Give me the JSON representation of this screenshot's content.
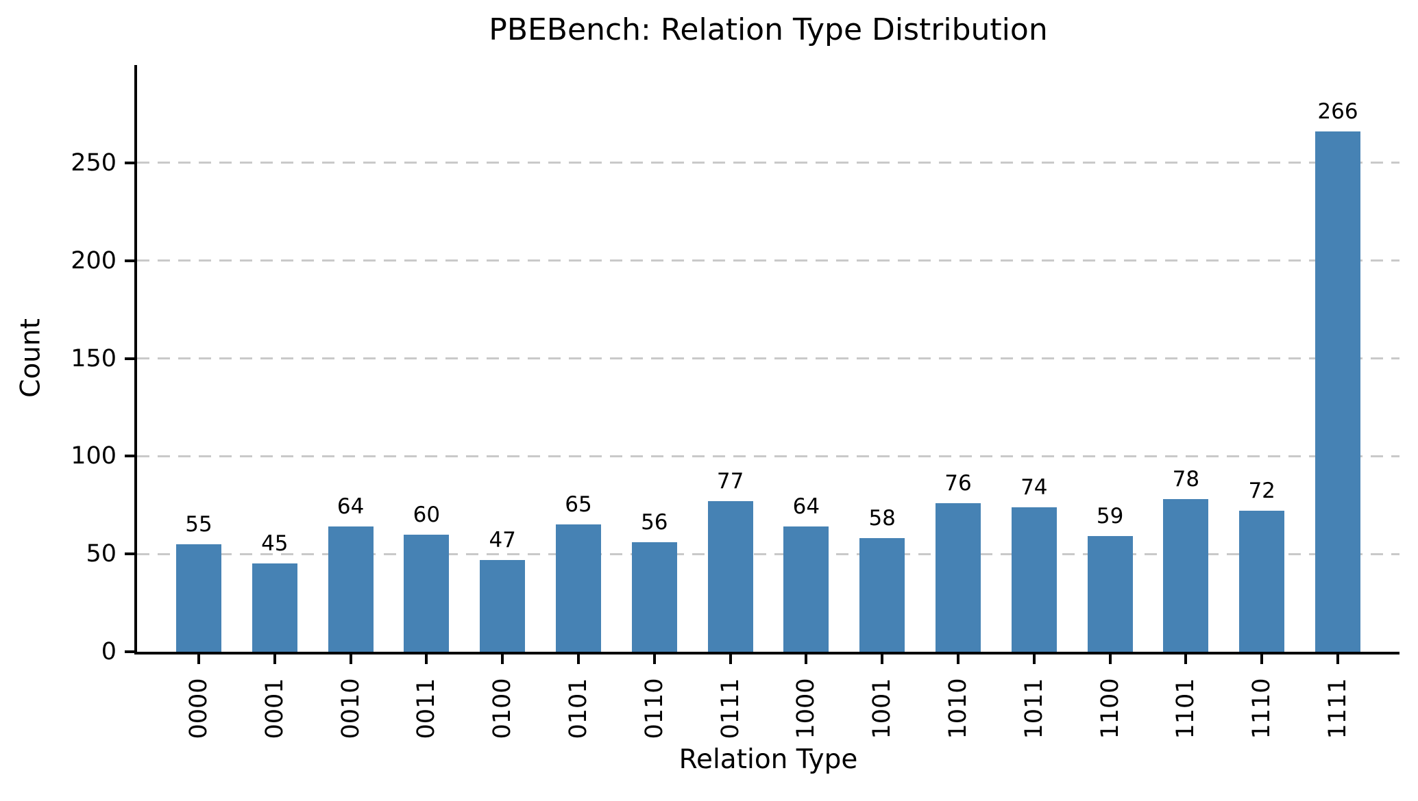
{
  "chart_data": {
    "type": "bar",
    "title": "PBEBench: Relation Type Distribution",
    "xlabel": "Relation Type",
    "ylabel": "Count",
    "categories": [
      "0000",
      "0001",
      "0010",
      "0011",
      "0100",
      "0101",
      "0110",
      "0111",
      "1000",
      "1001",
      "1010",
      "1011",
      "1100",
      "1101",
      "1110",
      "1111"
    ],
    "values": [
      55,
      45,
      64,
      60,
      47,
      65,
      56,
      77,
      64,
      58,
      76,
      74,
      59,
      78,
      72,
      266
    ],
    "bar_color": "#4682B4",
    "ylim": [
      0,
      300
    ],
    "yticks": [
      0,
      50,
      100,
      150,
      200,
      250
    ],
    "grid": "horizontal-dashed",
    "gridline_color": "#c9c9c9",
    "x_tick_label_rotation_deg": 90,
    "bar_value_labels_shown": true,
    "legend": "none"
  }
}
